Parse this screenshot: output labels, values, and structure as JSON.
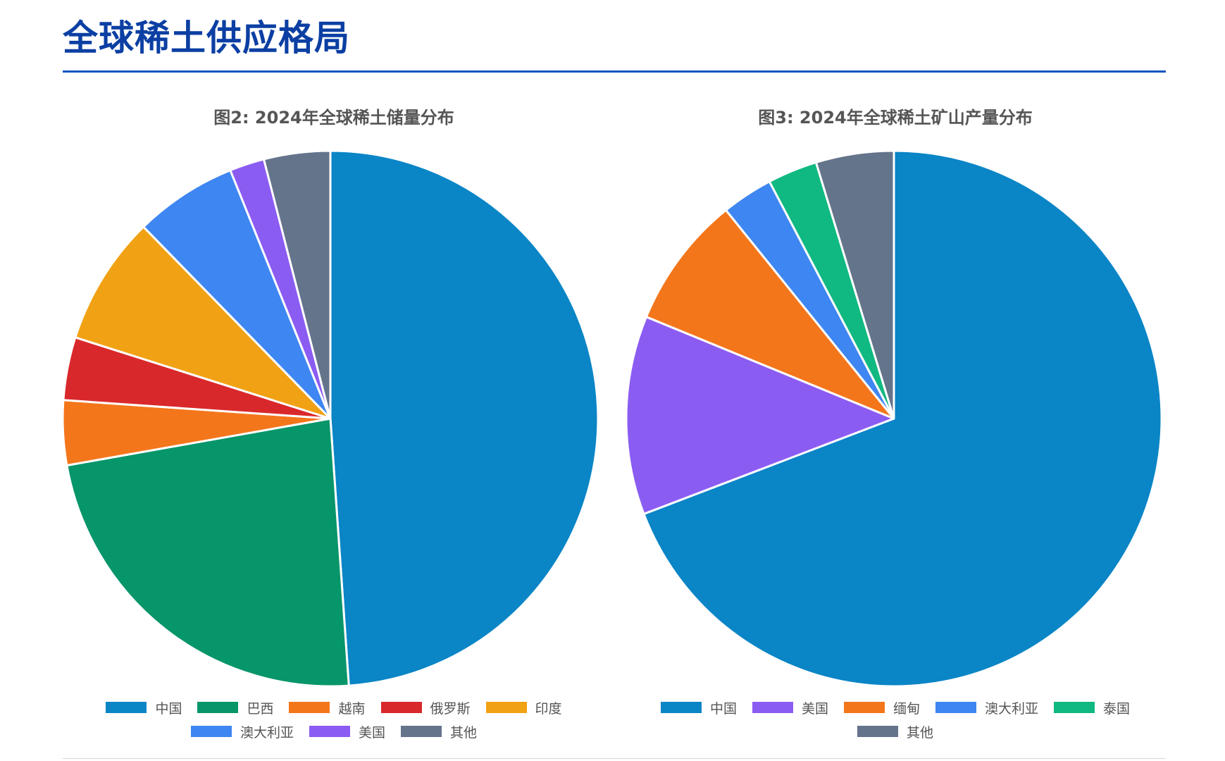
{
  "page": {
    "title": "全球稀土供应格局"
  },
  "chart_data": [
    {
      "type": "pie",
      "title": "图2: 2024年全球稀土储量分布",
      "categories": [
        "中国",
        "巴西",
        "越南",
        "俄罗斯",
        "印度",
        "澳大利亚",
        "美国",
        "其他"
      ],
      "values": [
        48.9,
        23.3,
        3.9,
        3.8,
        7.8,
        6.2,
        2.1,
        4.0
      ],
      "colors": [
        "#0a85c6",
        "#07956a",
        "#f4761b",
        "#d9282b",
        "#f1a114",
        "#3e86f1",
        "#8b5cf2",
        "#64748b"
      ],
      "legend_position": "bottom"
    },
    {
      "type": "pie",
      "title": "图3: 2024年全球稀土矿山产量分布",
      "categories": [
        "中国",
        "美国",
        "缅甸",
        "澳大利亚",
        "泰国",
        "其他"
      ],
      "values": [
        69.2,
        12.0,
        8.0,
        3.1,
        3.0,
        4.7
      ],
      "colors": [
        "#0a85c6",
        "#8b5cf2",
        "#f4761b",
        "#3e86f1",
        "#10b981",
        "#64748b"
      ],
      "legend_position": "bottom"
    }
  ]
}
